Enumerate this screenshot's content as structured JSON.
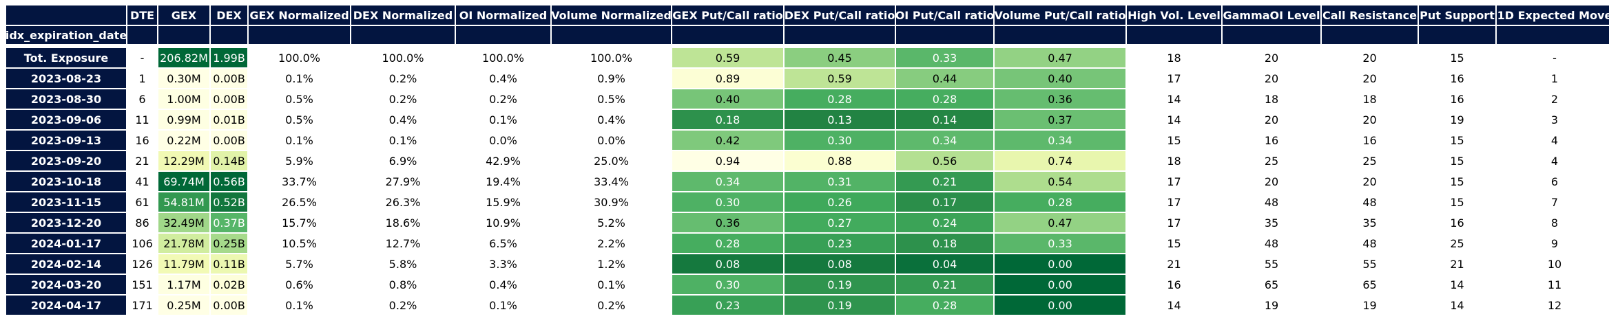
{
  "colors": {
    "header_bg": "#031540",
    "header_text": "#ffffff",
    "gradient": [
      "#ffffe5",
      "#f7fcb9",
      "#d9f0a3",
      "#addd8e",
      "#78c679",
      "#41ab5d",
      "#238443",
      "#006837"
    ]
  },
  "chart_data": {
    "type": "table",
    "index_name": "idx_expiration_date",
    "columns": [
      "DTE",
      "GEX",
      "DEX",
      "GEX Normalized",
      "DEX Normalized",
      "OI Normalized",
      "Volume Normalized",
      "GEX Put/Call ratio",
      "DEX Put/Call ratio",
      "OI Put/Call ratio",
      "Volume Put/Call ratio",
      "High Vol. Level",
      "GammaOI Level",
      "Call Resistance",
      "Put Support",
      "1D Expected Move"
    ],
    "rows": [
      {
        "label": "Tot. Exposure",
        "cells": [
          "-",
          "206.82M",
          "1.99B",
          "100.0%",
          "100.0%",
          "100.0%",
          "100.0%",
          "0.59",
          "0.45",
          "0.33",
          "0.47",
          "18",
          "20",
          "20",
          "15",
          "-"
        ]
      },
      {
        "label": "2023-08-23",
        "cells": [
          "1",
          "0.30M",
          "0.00B",
          "0.1%",
          "0.2%",
          "0.4%",
          "0.9%",
          "0.89",
          "0.59",
          "0.44",
          "0.40",
          "17",
          "20",
          "20",
          "16",
          "1"
        ]
      },
      {
        "label": "2023-08-30",
        "cells": [
          "6",
          "1.00M",
          "0.00B",
          "0.5%",
          "0.2%",
          "0.2%",
          "0.5%",
          "0.40",
          "0.28",
          "0.28",
          "0.36",
          "14",
          "18",
          "18",
          "16",
          "2"
        ]
      },
      {
        "label": "2023-09-06",
        "cells": [
          "11",
          "0.99M",
          "0.01B",
          "0.5%",
          "0.4%",
          "0.1%",
          "0.4%",
          "0.18",
          "0.13",
          "0.14",
          "0.37",
          "14",
          "20",
          "20",
          "19",
          "3"
        ]
      },
      {
        "label": "2023-09-13",
        "cells": [
          "16",
          "0.22M",
          "0.00B",
          "0.1%",
          "0.1%",
          "0.0%",
          "0.0%",
          "0.42",
          "0.30",
          "0.34",
          "0.34",
          "15",
          "16",
          "16",
          "15",
          "4"
        ]
      },
      {
        "label": "2023-09-20",
        "cells": [
          "21",
          "12.29M",
          "0.14B",
          "5.9%",
          "6.9%",
          "42.9%",
          "25.0%",
          "0.94",
          "0.88",
          "0.56",
          "0.74",
          "18",
          "25",
          "25",
          "15",
          "4"
        ]
      },
      {
        "label": "2023-10-18",
        "cells": [
          "41",
          "69.74M",
          "0.56B",
          "33.7%",
          "27.9%",
          "19.4%",
          "33.4%",
          "0.34",
          "0.31",
          "0.21",
          "0.54",
          "17",
          "20",
          "20",
          "15",
          "6"
        ]
      },
      {
        "label": "2023-11-15",
        "cells": [
          "61",
          "54.81M",
          "0.52B",
          "26.5%",
          "26.3%",
          "15.9%",
          "30.9%",
          "0.30",
          "0.26",
          "0.17",
          "0.28",
          "17",
          "48",
          "48",
          "15",
          "7"
        ]
      },
      {
        "label": "2023-12-20",
        "cells": [
          "86",
          "32.49M",
          "0.37B",
          "15.7%",
          "18.6%",
          "10.9%",
          "5.2%",
          "0.36",
          "0.27",
          "0.24",
          "0.47",
          "17",
          "35",
          "35",
          "16",
          "8"
        ]
      },
      {
        "label": "2024-01-17",
        "cells": [
          "106",
          "21.78M",
          "0.25B",
          "10.5%",
          "12.7%",
          "6.5%",
          "2.2%",
          "0.28",
          "0.23",
          "0.18",
          "0.33",
          "15",
          "48",
          "48",
          "25",
          "9"
        ]
      },
      {
        "label": "2024-02-14",
        "cells": [
          "126",
          "11.79M",
          "0.11B",
          "5.7%",
          "5.8%",
          "3.3%",
          "1.2%",
          "0.08",
          "0.08",
          "0.04",
          "0.00",
          "21",
          "55",
          "55",
          "21",
          "10"
        ]
      },
      {
        "label": "2024-03-20",
        "cells": [
          "151",
          "1.17M",
          "0.02B",
          "0.6%",
          "0.8%",
          "0.4%",
          "0.1%",
          "0.30",
          "0.19",
          "0.21",
          "0.00",
          "16",
          "65",
          "65",
          "14",
          "11"
        ]
      },
      {
        "label": "2024-04-17",
        "cells": [
          "171",
          "0.25M",
          "0.00B",
          "0.1%",
          "0.2%",
          "0.1%",
          "0.2%",
          "0.23",
          "0.19",
          "0.28",
          "0.00",
          "14",
          "19",
          "19",
          "14",
          "12"
        ]
      }
    ],
    "color_scale": {
      "column_groups": [
        {
          "columns": [
            "GEX"
          ],
          "excluded_rows": [
            "Tot. Exposure"
          ]
        },
        {
          "columns": [
            "DEX"
          ],
          "excluded_rows": [
            "Tot. Exposure"
          ]
        },
        {
          "columns": [
            "GEX Put/Call ratio",
            "DEX Put/Call ratio",
            "OI Put/Call ratio",
            "Volume Put/Call ratio"
          ],
          "invert": true
        }
      ],
      "highlighted_rows": [
        "Tot. Exposure"
      ]
    }
  }
}
